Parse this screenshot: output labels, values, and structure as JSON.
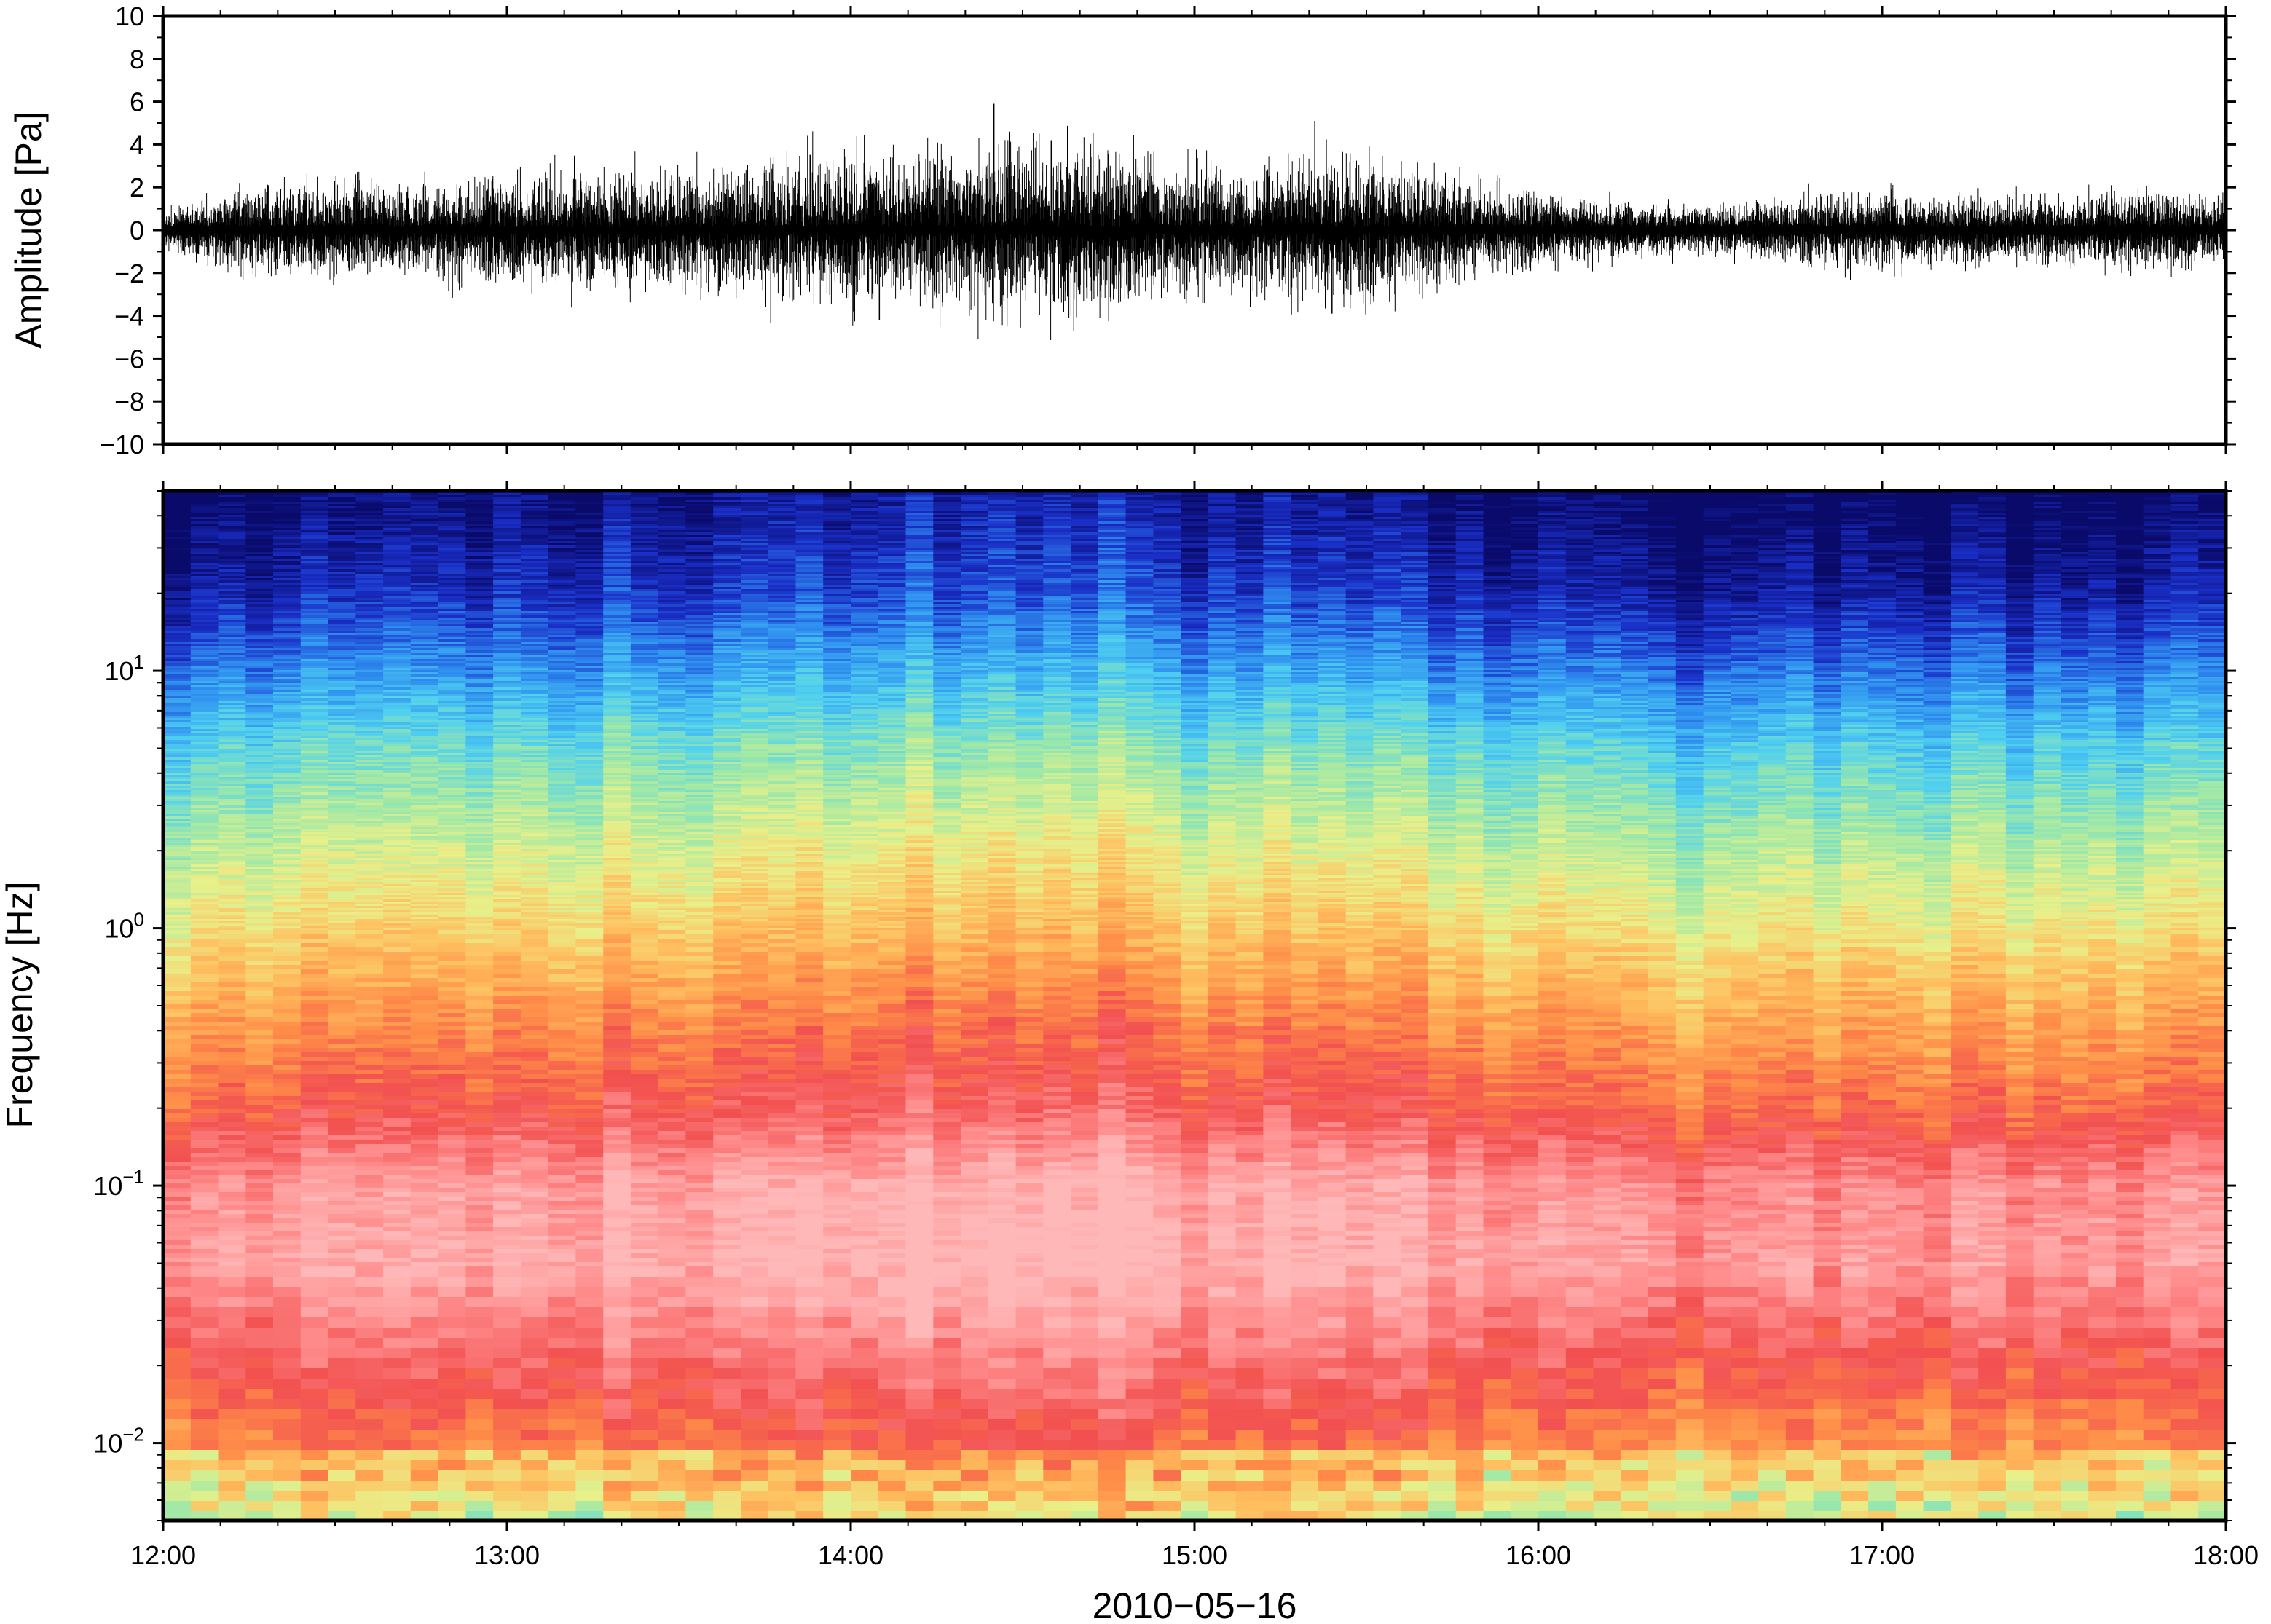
{
  "chart_data": [
    {
      "type": "line",
      "title": "",
      "xlabel": "",
      "ylabel": "Amplitude [Pa]",
      "ylim": [
        -10,
        10
      ],
      "xlim": [
        "12:00",
        "18:00"
      ],
      "y_ticks": [
        {
          "value": 10,
          "label": "10"
        },
        {
          "value": 8,
          "label": "8"
        },
        {
          "value": 6,
          "label": "6"
        },
        {
          "value": 4,
          "label": "4"
        },
        {
          "value": 2,
          "label": "2"
        },
        {
          "value": 0,
          "label": "0"
        },
        {
          "value": -2,
          "label": "−2"
        },
        {
          "value": -4,
          "label": "−4"
        },
        {
          "value": -6,
          "label": "−6"
        },
        {
          "value": -8,
          "label": "−8"
        },
        {
          "value": -10,
          "label": "−10"
        }
      ],
      "grid": false,
      "series_color": "#000000",
      "envelope": {
        "x": [
          "12:00",
          "12:15",
          "12:30",
          "12:45",
          "13:00",
          "13:15",
          "13:30",
          "13:45",
          "14:00",
          "14:15",
          "14:30",
          "14:45",
          "15:00",
          "15:15",
          "15:30",
          "15:45",
          "16:00",
          "16:15",
          "16:30",
          "16:45",
          "17:00",
          "17:15",
          "17:30",
          "17:45",
          "18:00"
        ],
        "amplitude": [
          0.6,
          1.6,
          1.9,
          1.8,
          2.0,
          2.3,
          2.4,
          2.5,
          2.9,
          3.1,
          3.4,
          3.2,
          2.4,
          2.6,
          2.9,
          2.1,
          1.4,
          1.0,
          0.9,
          1.2,
          1.4,
          1.3,
          1.2,
          1.5,
          1.3
        ]
      },
      "spikes": [
        {
          "x": "14:25",
          "y": 5.9
        },
        {
          "x": "15:21",
          "y": 5.1
        },
        {
          "x": "14:35",
          "y": 4.2
        },
        {
          "x": "14:40",
          "y": -3.0
        },
        {
          "x": "15:24",
          "y": -3.9
        },
        {
          "x": "14:05",
          "y": -4.2
        }
      ]
    },
    {
      "type": "heatmap",
      "title": "",
      "xlabel": "2010−05−16",
      "ylabel": "Frequency [Hz]",
      "y_scale": "log",
      "ylim": [
        0.005,
        50
      ],
      "xlim": [
        "12:00",
        "18:00"
      ],
      "x_ticks": [
        "12:00",
        "13:00",
        "14:00",
        "15:00",
        "16:00",
        "17:00",
        "18:00"
      ],
      "y_ticks": [
        {
          "value": 0.01,
          "base": "10",
          "exp": "−2"
        },
        {
          "value": 0.1,
          "base": "10",
          "exp": "−1"
        },
        {
          "value": 1,
          "base": "10",
          "exp": "0"
        },
        {
          "value": 10,
          "base": "10",
          "exp": "1"
        }
      ],
      "colormap": [
        "#0a0a6b",
        "#1a2fc8",
        "#2f8ff0",
        "#4fd0f0",
        "#9ee8a8",
        "#e8f08a",
        "#ffc060",
        "#ff8c48",
        "#f25050",
        "#ff8a8a",
        "#ffb8b8"
      ],
      "colormap_note_low_to_high": "navy → blue → cyan → green → yellow → orange → red → pink",
      "frequency_profile_hz": [
        50,
        20,
        10,
        5,
        2,
        1,
        0.5,
        0.2,
        0.1,
        0.05,
        0.02,
        0.01,
        0.005
      ],
      "level_profile": [
        0.0,
        0.08,
        0.2,
        0.33,
        0.46,
        0.55,
        0.66,
        0.78,
        0.93,
        0.96,
        0.82,
        0.72,
        0.58
      ],
      "time_columns": 75
    }
  ]
}
